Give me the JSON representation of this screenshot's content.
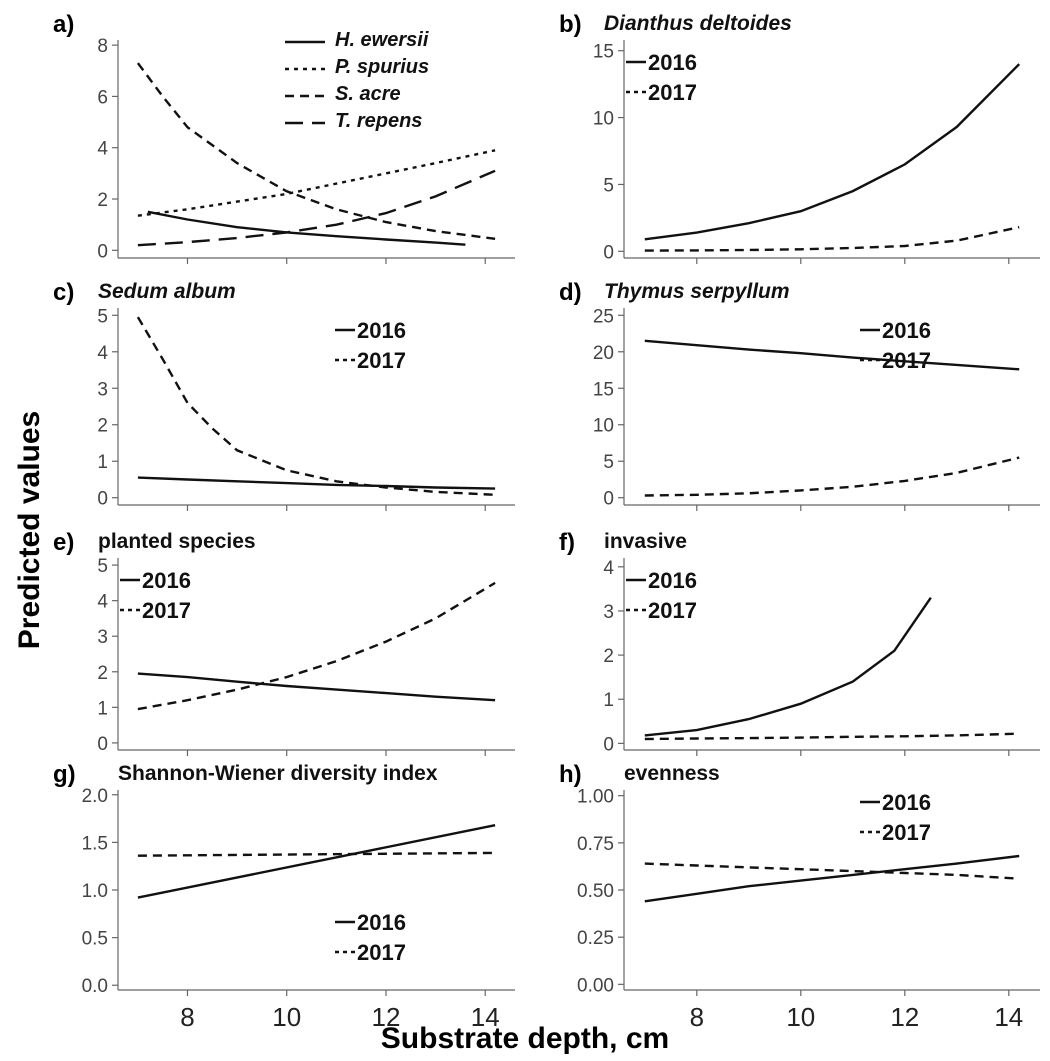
{
  "figure": {
    "ylabel": "Predicted values",
    "xlabel": "Substrate depth, cm",
    "x_ticks": [
      8,
      10,
      12,
      14
    ]
  },
  "chart_data": [
    {
      "panel": "a)",
      "title": "",
      "type": "line",
      "ylim": [
        -0.3,
        8.2
      ],
      "yticks": [
        0,
        2,
        4,
        6,
        8
      ],
      "legend": "top-right",
      "series": [
        {
          "name": "H. ewersii",
          "style": "solid",
          "x": [
            7.2,
            8,
            9,
            10,
            11,
            12,
            13,
            13.6
          ],
          "y": [
            1.5,
            1.2,
            0.9,
            0.7,
            0.55,
            0.42,
            0.3,
            0.22
          ]
        },
        {
          "name": "P. spurius",
          "style": "dot",
          "x": [
            7,
            8,
            9,
            10,
            11,
            12,
            13,
            14.2
          ],
          "y": [
            1.35,
            1.6,
            1.9,
            2.2,
            2.6,
            3.0,
            3.4,
            3.9
          ]
        },
        {
          "name": "S. acre",
          "style": "dash",
          "x": [
            7,
            7.5,
            8,
            9,
            10,
            11,
            12,
            13,
            14.2
          ],
          "y": [
            7.3,
            6.0,
            4.8,
            3.4,
            2.3,
            1.6,
            1.1,
            0.75,
            0.45
          ]
        },
        {
          "name": "T. repens",
          "style": "longdash",
          "x": [
            7,
            8,
            9,
            10,
            11,
            12,
            13,
            14.2
          ],
          "y": [
            0.2,
            0.32,
            0.48,
            0.7,
            1.0,
            1.45,
            2.1,
            3.1
          ]
        }
      ]
    },
    {
      "panel": "b)",
      "title": "Dianthus deltoides",
      "type": "line",
      "ylim": [
        -0.5,
        15.8
      ],
      "yticks": [
        0,
        5,
        10,
        15
      ],
      "ytick_labels": [
        "0",
        "5",
        "10",
        "15"
      ],
      "legend": "top-left",
      "series": [
        {
          "name": "2016",
          "style": "solid",
          "x": [
            7,
            8,
            9,
            10,
            11,
            12,
            13,
            14.2
          ],
          "y": [
            0.9,
            1.4,
            2.1,
            3.0,
            4.5,
            6.5,
            9.3,
            14.0
          ]
        },
        {
          "name": "2017",
          "style": "dash",
          "x": [
            7,
            8,
            9,
            10,
            11,
            12,
            13,
            14.2
          ],
          "y": [
            0.05,
            0.07,
            0.1,
            0.15,
            0.25,
            0.4,
            0.8,
            1.8
          ]
        }
      ]
    },
    {
      "panel": "c)",
      "title": "Sedum album",
      "type": "line",
      "ylim": [
        -0.2,
        5.2
      ],
      "yticks": [
        0,
        1,
        2,
        3,
        4,
        5
      ],
      "legend": "top-right",
      "series": [
        {
          "name": "2016",
          "style": "solid",
          "x": [
            7,
            8,
            9,
            10,
            11,
            12,
            13,
            14.2
          ],
          "y": [
            0.55,
            0.5,
            0.45,
            0.4,
            0.35,
            0.32,
            0.28,
            0.25
          ]
        },
        {
          "name": "2017",
          "style": "dash",
          "x": [
            7,
            7.5,
            8,
            8.5,
            9,
            10,
            11,
            12,
            13,
            14.2
          ],
          "y": [
            4.95,
            3.8,
            2.6,
            1.9,
            1.3,
            0.75,
            0.45,
            0.28,
            0.16,
            0.08
          ]
        }
      ]
    },
    {
      "panel": "d)",
      "title": "Thymus serpyllum",
      "type": "line",
      "ylim": [
        -1,
        26
      ],
      "yticks": [
        0,
        5,
        10,
        15,
        20,
        25
      ],
      "legend": "top-right",
      "series": [
        {
          "name": "2016",
          "style": "solid",
          "x": [
            7,
            8,
            9,
            10,
            11,
            12,
            13,
            14.2
          ],
          "y": [
            21.5,
            20.9,
            20.3,
            19.8,
            19.2,
            18.7,
            18.2,
            17.6
          ]
        },
        {
          "name": "2017",
          "style": "dash",
          "x": [
            7,
            8,
            9,
            10,
            11,
            12,
            13,
            14.2
          ],
          "y": [
            0.3,
            0.4,
            0.6,
            1.0,
            1.5,
            2.3,
            3.4,
            5.5
          ]
        }
      ]
    },
    {
      "panel": "e)",
      "title": "planted species",
      "type": "line",
      "ylim": [
        -0.2,
        5.2
      ],
      "yticks": [
        0,
        1,
        2,
        3,
        4,
        5
      ],
      "legend": "top-left",
      "series": [
        {
          "name": "2016",
          "style": "solid",
          "x": [
            7,
            8,
            9,
            10,
            11,
            12,
            13,
            14.2
          ],
          "y": [
            1.95,
            1.85,
            1.72,
            1.6,
            1.5,
            1.4,
            1.3,
            1.2
          ]
        },
        {
          "name": "2017",
          "style": "dash",
          "x": [
            7,
            8,
            9,
            10,
            11,
            12,
            13,
            14.2
          ],
          "y": [
            0.95,
            1.2,
            1.5,
            1.85,
            2.3,
            2.85,
            3.5,
            4.5
          ]
        }
      ]
    },
    {
      "panel": "f)",
      "title": "invasive",
      "type": "line",
      "ylim": [
        -0.15,
        4.2
      ],
      "yticks": [
        0,
        1,
        2,
        3,
        4
      ],
      "legend": "top-left",
      "series": [
        {
          "name": "2016",
          "style": "solid",
          "x": [
            7,
            8,
            9,
            10,
            11,
            11.8,
            12.5
          ],
          "y": [
            0.18,
            0.3,
            0.55,
            0.9,
            1.4,
            2.1,
            3.3
          ]
        },
        {
          "name": "2017",
          "style": "dash",
          "x": [
            7,
            8,
            9,
            10,
            11,
            12,
            13,
            14.2
          ],
          "y": [
            0.1,
            0.11,
            0.12,
            0.13,
            0.15,
            0.16,
            0.18,
            0.22
          ]
        }
      ]
    },
    {
      "panel": "g)",
      "title": "Shannon-Wiener diversity index",
      "type": "line",
      "ylim": [
        -0.05,
        2.05
      ],
      "yticks": [
        0,
        0.5,
        1.0,
        1.5,
        2.0
      ],
      "ytick_labels": [
        "0.0",
        "0.5",
        "1.0",
        "1.5",
        "2.0"
      ],
      "legend": "bottom-right",
      "series": [
        {
          "name": "2016",
          "style": "solid",
          "x": [
            7,
            14.2
          ],
          "y": [
            0.92,
            1.68
          ]
        },
        {
          "name": "2017",
          "style": "dash",
          "x": [
            7,
            14.2
          ],
          "y": [
            1.36,
            1.39
          ]
        }
      ]
    },
    {
      "panel": "h)",
      "title": "evenness",
      "type": "line",
      "ylim": [
        -0.03,
        1.03
      ],
      "yticks": [
        0,
        0.25,
        0.5,
        0.75,
        1.0
      ],
      "ytick_labels": [
        "0.00",
        "0.25",
        "0.50",
        "0.75",
        "1.00"
      ],
      "legend": "top-right",
      "series": [
        {
          "name": "2016",
          "style": "solid",
          "x": [
            7,
            8,
            9,
            10,
            11,
            12,
            13,
            14.2
          ],
          "y": [
            0.44,
            0.48,
            0.52,
            0.55,
            0.58,
            0.61,
            0.64,
            0.68
          ]
        },
        {
          "name": "2017",
          "style": "dash",
          "x": [
            7,
            8,
            9,
            10,
            11,
            12,
            13,
            14.2
          ],
          "y": [
            0.64,
            0.63,
            0.62,
            0.61,
            0.6,
            0.59,
            0.58,
            0.56
          ]
        }
      ]
    }
  ]
}
